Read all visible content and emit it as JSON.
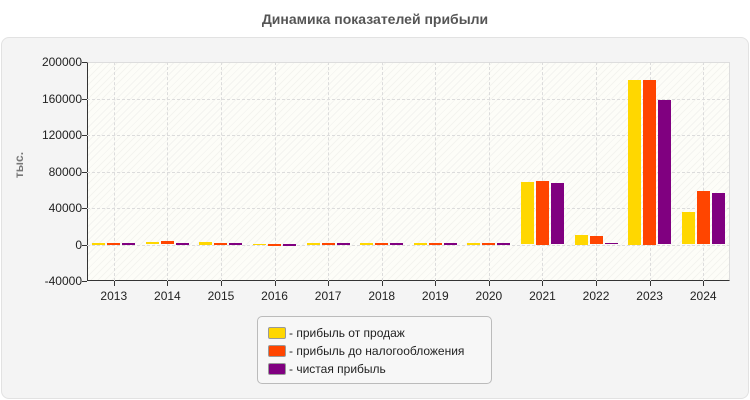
{
  "title": "Динамика показателей прибыли",
  "chart_data": {
    "type": "bar",
    "title": "Динамика показателей прибыли",
    "xlabel": "",
    "ylabel": "тыс.",
    "ylim": [
      -40000,
      200000
    ],
    "yticks": [
      200000,
      160000,
      120000,
      80000,
      40000,
      0,
      -40000
    ],
    "grid": true,
    "legend_position": "bottom",
    "categories": [
      "2013",
      "2014",
      "2015",
      "2016",
      "2017",
      "2018",
      "2019",
      "2020",
      "2021",
      "2022",
      "2023",
      "2024"
    ],
    "series": [
      {
        "name": "- прибыль от продаж",
        "color": "#FFD700",
        "values": [
          1500,
          3000,
          2500,
          1000,
          1500,
          1500,
          1500,
          1500,
          68000,
          10000,
          180000,
          36000
        ]
      },
      {
        "name": "- прибыль до налогообложения",
        "color": "#FF4500",
        "values": [
          1500,
          3500,
          1500,
          500,
          1500,
          1500,
          1500,
          1500,
          70000,
          9000,
          180000,
          59000
        ]
      },
      {
        "name": "- чистая прибыль",
        "color": "#800080",
        "values": [
          1500,
          1500,
          1500,
          500,
          1500,
          1500,
          1500,
          1500,
          67000,
          2000,
          158000,
          56000
        ]
      }
    ]
  }
}
